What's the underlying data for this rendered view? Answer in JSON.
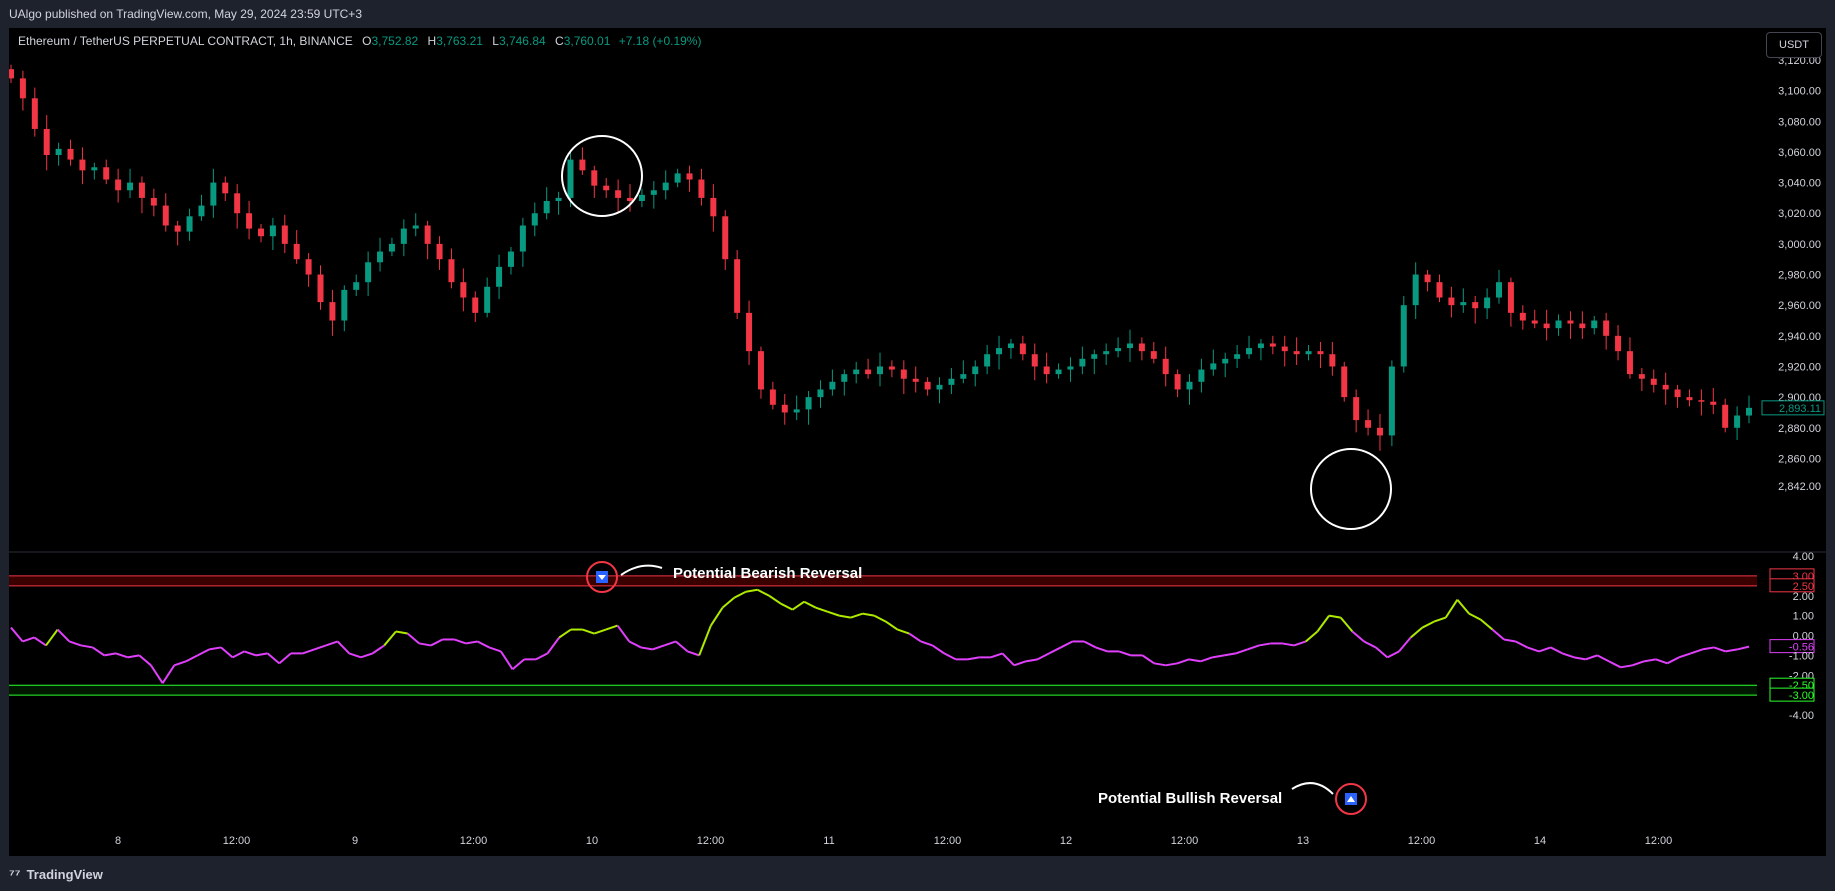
{
  "header": {
    "publisher_text": "UAlgo published on TradingView.com, May 29, 2024 23:59 UTC+3"
  },
  "legend": {
    "symbol": "Ethereum / TetherUS PERPETUAL CONTRACT, 1h, BINANCE",
    "open_label": "O",
    "open": "3,752.82",
    "high_label": "H",
    "high": "3,763.21",
    "low_label": "L",
    "low": "3,746.84",
    "close_label": "C",
    "close": "3,760.01",
    "change": "+7.18 (+0.19%)"
  },
  "currency_button": "USDT",
  "footer": {
    "brand": "TradingView",
    "logo_glyph": "⁷⁷"
  },
  "annotations": {
    "bearish": "Potential Bearish Reversal",
    "bullish": "Potential Bullish Reversal"
  },
  "colors": {
    "up": "#089981",
    "down": "#f23645",
    "osc_bull": "#aeea00",
    "osc_bear": "#e040fb",
    "ob_band": "#f23645",
    "os_band": "#2aff2a",
    "bg": "#000000",
    "frame": "#1e222d"
  },
  "chart_data": [
    {
      "type": "candlestick",
      "title": "Ethereum / TetherUS PERPETUAL CONTRACT, 1h, BINANCE",
      "ylim": [
        2835,
        3130
      ],
      "y_ticks": [
        "3,120.00",
        "3,100.00",
        "3,080.00",
        "3,060.00",
        "3,040.00",
        "3,020.00",
        "3,000.00",
        "2,980.00",
        "2,960.00",
        "2,940.00",
        "2,920.00",
        "2,900.00",
        "2,880.00",
        "2,860.00",
        "2,842.00"
      ],
      "y_tick_values": [
        3120,
        3100,
        3080,
        3060,
        3040,
        3020,
        3000,
        2980,
        2960,
        2940,
        2920,
        2900,
        2880,
        2860,
        2842
      ],
      "last_price": "2,893.11",
      "x_ticks": [
        "8",
        "12:00",
        "9",
        "12:00",
        "10",
        "12:00",
        "11",
        "12:00",
        "12",
        "12:00",
        "13",
        "12:00",
        "14",
        "12:00"
      ],
      "close_path": [
        3108,
        3095,
        3075,
        3058,
        3062,
        3055,
        3048,
        3050,
        3042,
        3035,
        3040,
        3030,
        3025,
        3012,
        3008,
        3018,
        3025,
        3040,
        3033,
        3020,
        3010,
        3005,
        3012,
        3000,
        2990,
        2980,
        2962,
        2950,
        2970,
        2975,
        2988,
        2995,
        3000,
        3010,
        3012,
        3000,
        2990,
        2975,
        2965,
        2955,
        2972,
        2985,
        2995,
        3012,
        3020,
        3028,
        3030,
        3055,
        3048,
        3038,
        3035,
        3030,
        3028,
        3032,
        3035,
        3040,
        3046,
        3042,
        3030,
        3018,
        2990,
        2955,
        2930,
        2905,
        2895,
        2890,
        2892,
        2900,
        2905,
        2910,
        2915,
        2918,
        2915,
        2920,
        2918,
        2912,
        2910,
        2905,
        2908,
        2912,
        2915,
        2920,
        2928,
        2932,
        2935,
        2928,
        2920,
        2915,
        2918,
        2920,
        2925,
        2928,
        2930,
        2932,
        2935,
        2930,
        2925,
        2915,
        2905,
        2910,
        2918,
        2922,
        2925,
        2928,
        2932,
        2935,
        2933,
        2930,
        2928,
        2930,
        2928,
        2920,
        2900,
        2885,
        2880,
        2875,
        2920,
        2960,
        2980,
        2975,
        2965,
        2960,
        2962,
        2958,
        2965,
        2975,
        2955,
        2950,
        2948,
        2945,
        2950,
        2948,
        2945,
        2950,
        2940,
        2930,
        2915,
        2912,
        2908,
        2905,
        2900,
        2898,
        2897,
        2895,
        2880,
        2888,
        2893
      ]
    },
    {
      "type": "line",
      "series": [
        {
          "name": "",
          "colors": [
            "#aeea00",
            "#e040fb"
          ]
        }
      ],
      "ylim": [
        -4.6,
        4.4
      ],
      "y_ticks": [
        "4.00",
        "3.00",
        "2.50",
        "2.00",
        "1.00",
        "0.00",
        "-0.56",
        "-1.00",
        "-2.00",
        "-2.50",
        "-3.00",
        "-4.00"
      ],
      "y_tick_values": [
        4,
        3,
        2.5,
        2,
        1,
        0,
        -0.56,
        -1,
        -2,
        -2.5,
        -3,
        -4
      ],
      "overbought_band": [
        2.5,
        3.0
      ],
      "oversold_band": [
        -3.0,
        -2.5
      ],
      "last_value": "-0.56",
      "values": [
        0.4,
        -0.3,
        -0.1,
        -0.5,
        0.3,
        -0.3,
        -0.5,
        -0.6,
        -1.0,
        -0.9,
        -1.1,
        -1.0,
        -1.5,
        -2.4,
        -1.5,
        -1.3,
        -1.0,
        -0.7,
        -0.6,
        -1.1,
        -0.8,
        -1.0,
        -0.9,
        -1.4,
        -0.9,
        -0.9,
        -0.7,
        -0.5,
        -0.3,
        -0.9,
        -1.1,
        -0.9,
        -0.5,
        0.2,
        0.1,
        -0.4,
        -0.5,
        -0.2,
        -0.2,
        -0.4,
        -0.3,
        -0.6,
        -0.8,
        -1.7,
        -1.2,
        -1.2,
        -0.9,
        -0.1,
        0.3,
        0.3,
        0.1,
        0.3,
        0.5,
        -0.3,
        -0.6,
        -0.7,
        -0.5,
        -0.3,
        -0.8,
        -1.0,
        0.5,
        1.4,
        1.9,
        2.2,
        2.3,
        2.0,
        1.6,
        1.3,
        1.7,
        1.4,
        1.2,
        1.0,
        0.9,
        1.1,
        1.0,
        0.7,
        0.3,
        0.1,
        -0.3,
        -0.5,
        -0.9,
        -1.2,
        -1.2,
        -1.1,
        -1.1,
        -0.9,
        -1.5,
        -1.3,
        -1.2,
        -0.9,
        -0.6,
        -0.3,
        -0.3,
        -0.6,
        -0.8,
        -0.8,
        -1.0,
        -1.0,
        -1.4,
        -1.5,
        -1.4,
        -1.2,
        -1.3,
        -1.1,
        -1.0,
        -0.9,
        -0.7,
        -0.5,
        -0.4,
        -0.4,
        -0.5,
        -0.3,
        0.2,
        1.0,
        0.9,
        0.2,
        -0.3,
        -0.6,
        -1.1,
        -0.8,
        -0.1,
        0.4,
        0.7,
        0.9,
        1.8,
        1.1,
        0.8,
        0.3,
        -0.2,
        -0.3,
        -0.6,
        -0.8,
        -0.6,
        -0.9,
        -1.1,
        -1.2,
        -1.0,
        -1.3,
        -1.6,
        -1.5,
        -1.3,
        -1.2,
        -1.4,
        -1.1,
        -0.9,
        -0.7,
        -0.6,
        -0.8,
        -0.7,
        -0.56
      ]
    }
  ]
}
